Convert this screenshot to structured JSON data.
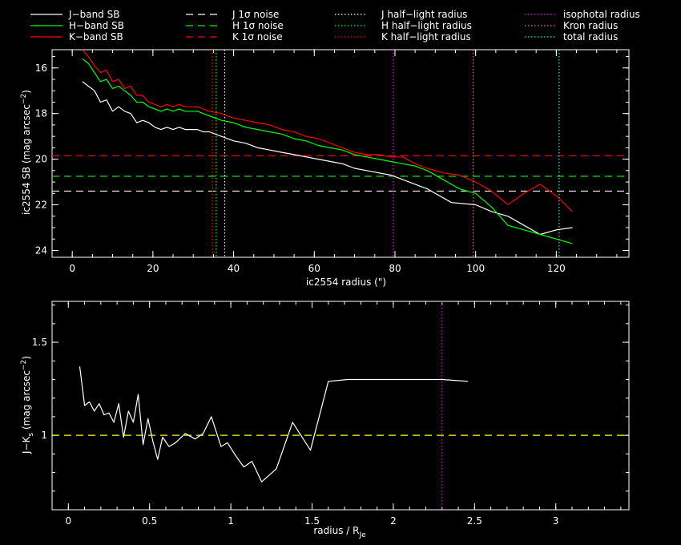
{
  "legend": [
    {
      "label": "J−band SB",
      "color": "#ffffff",
      "style": "solid"
    },
    {
      "label": "H−band SB",
      "color": "#00ff00",
      "style": "solid"
    },
    {
      "label": "K−band SB",
      "color": "#ff0000",
      "style": "solid"
    },
    {
      "label": "J 1σ noise",
      "color": "#ffffff",
      "style": "dashed"
    },
    {
      "label": "H 1σ noise",
      "color": "#00ff00",
      "style": "dashed"
    },
    {
      "label": "K 1σ noise",
      "color": "#ff0000",
      "style": "dashed"
    },
    {
      "label": "J half−light radius",
      "color": "#ffffff",
      "style": "dotted"
    },
    {
      "label": "H half−light radius",
      "color": "#00ff00",
      "style": "dotted"
    },
    {
      "label": "K half−light radius",
      "color": "#ff0000",
      "style": "dotted"
    },
    {
      "label": "isophotal radius",
      "color": "#ff00ff",
      "style": "dotted"
    },
    {
      "label": "Kron radius",
      "color": "#ff8000",
      "style": "dotted"
    },
    {
      "label": "total radius",
      "color": "#00ffff",
      "style": "dotted"
    }
  ],
  "chart_data": [
    {
      "type": "line",
      "xlabel": "ic2554 radius (\")",
      "ylabel_main": "ic2554 SB (mag arcsec",
      "ylabel_sup": "−2",
      "ylabel_end": ")",
      "xlim": [
        -5,
        138
      ],
      "ylim": [
        24.3,
        15.2
      ],
      "y_inverted": true,
      "xticks": [
        0,
        20,
        40,
        60,
        80,
        100,
        120
      ],
      "yticks": [
        16,
        18,
        20,
        22,
        24
      ],
      "series": [
        {
          "name": "J−band SB",
          "color": "#ffffff",
          "x": [
            2.5,
            4,
            5.5,
            7,
            8.5,
            10,
            11.5,
            13,
            14.5,
            16,
            17.5,
            19,
            20.5,
            22,
            23.5,
            25,
            26.5,
            28,
            29.5,
            31,
            32.5,
            34,
            37,
            40,
            43,
            46,
            49,
            52,
            55,
            58,
            61,
            64,
            67,
            70,
            73,
            76,
            79,
            82,
            85,
            88,
            94,
            100,
            104,
            108,
            112,
            116,
            120,
            124
          ],
          "y": [
            16.6,
            16.8,
            17,
            17.5,
            17.4,
            17.9,
            17.7,
            17.9,
            18,
            18.4,
            18.3,
            18.4,
            18.6,
            18.7,
            18.6,
            18.7,
            18.6,
            18.7,
            18.7,
            18.7,
            18.8,
            18.8,
            19,
            19.2,
            19.3,
            19.5,
            19.6,
            19.7,
            19.8,
            19.9,
            20,
            20.1,
            20.2,
            20.4,
            20.5,
            20.6,
            20.7,
            20.9,
            21.1,
            21.3,
            21.9,
            22,
            22.3,
            22.5,
            22.9,
            23.3,
            23.1,
            23
          ]
        },
        {
          "name": "H−band SB",
          "color": "#00ff00",
          "x": [
            2.5,
            4,
            5.5,
            7,
            8.5,
            10,
            11.5,
            13,
            14.5,
            16,
            17.5,
            19,
            20.5,
            22,
            23.5,
            25,
            26.5,
            28,
            29.5,
            31,
            32.5,
            34,
            37,
            40,
            43,
            46,
            49,
            52,
            55,
            58,
            61,
            64,
            67,
            70,
            73,
            76,
            79,
            82,
            85,
            88,
            92,
            96,
            100,
            104,
            108,
            112,
            116,
            120,
            124
          ],
          "y": [
            15.6,
            15.8,
            16.2,
            16.6,
            16.5,
            16.9,
            16.8,
            17,
            17.2,
            17.5,
            17.5,
            17.7,
            17.8,
            17.9,
            17.8,
            17.9,
            17.8,
            17.9,
            17.9,
            17.9,
            18,
            18.1,
            18.3,
            18.4,
            18.6,
            18.7,
            18.8,
            18.9,
            19.1,
            19.2,
            19.4,
            19.5,
            19.6,
            19.8,
            19.9,
            20,
            20.1,
            20.2,
            20.3,
            20.5,
            20.9,
            21.3,
            21.5,
            22.1,
            22.9,
            23.1,
            23.3,
            23.5,
            23.7
          ]
        },
        {
          "name": "K−band SB",
          "color": "#ff0000",
          "x": [
            2.5,
            4,
            5.5,
            7,
            8.5,
            10,
            11.5,
            13,
            14.5,
            16,
            17.5,
            19,
            20.5,
            22,
            23.5,
            25,
            26.5,
            28,
            29.5,
            31,
            32.5,
            34,
            37,
            40,
            43,
            46,
            49,
            52,
            55,
            58,
            61,
            64,
            67,
            70,
            73,
            76,
            79,
            82,
            85,
            88,
            92,
            96,
            100,
            104,
            108,
            112,
            116,
            120,
            124
          ],
          "y": [
            15.2,
            15.5,
            15.9,
            16.2,
            16.1,
            16.6,
            16.5,
            16.9,
            16.8,
            17.2,
            17.2,
            17.5,
            17.6,
            17.7,
            17.6,
            17.7,
            17.6,
            17.7,
            17.7,
            17.7,
            17.8,
            17.9,
            18,
            18.2,
            18.3,
            18.4,
            18.5,
            18.7,
            18.8,
            19,
            19.1,
            19.3,
            19.5,
            19.7,
            19.8,
            19.8,
            19.9,
            19.9,
            20.2,
            20.4,
            20.6,
            20.7,
            21,
            21.4,
            22,
            21.5,
            21.1,
            21.6,
            22.3
          ]
        }
      ],
      "hlines": [
        {
          "name": "J 1σ noise",
          "y": 21.4,
          "color": "#ffffff"
        },
        {
          "name": "H 1σ noise",
          "y": 20.75,
          "color": "#00ff00"
        },
        {
          "name": "K 1σ noise",
          "y": 19.85,
          "color": "#ff0000"
        }
      ],
      "vlines": [
        {
          "name": "K half−light radius",
          "x": 34.8,
          "color": "#ff0000"
        },
        {
          "name": "H half−light radius",
          "x": 35.7,
          "color": "#00ff00"
        },
        {
          "name": "J half−light radius",
          "x": 37.8,
          "color": "#ffffff"
        },
        {
          "name": "isophotal radius",
          "x": 79.6,
          "color": "#ff00ff"
        },
        {
          "name": "Kron radius",
          "x": 99.4,
          "color": "#ff8000"
        },
        {
          "name": "total radius",
          "x": 120.7,
          "color": "#00ffff"
        }
      ]
    },
    {
      "type": "line",
      "xlabel": "radius / R",
      "xlabel_sub": "Je",
      "ylabel_pre": "J−K",
      "ylabel_sub": "s",
      "ylabel_mid": " (mag arcsec",
      "ylabel_sup": "−2",
      "ylabel_end": ")",
      "xlim": [
        -0.1,
        3.45
      ],
      "ylim": [
        0.6,
        1.72
      ],
      "xticks": [
        0,
        0.5,
        1,
        1.5,
        2,
        2.5,
        3
      ],
      "xticklabels": [
        "0",
        "0.5",
        "1",
        "1.5",
        "2",
        "2.5",
        "3"
      ],
      "yticks": [
        1,
        1.5
      ],
      "yticklabels": [
        "1",
        "1.5"
      ],
      "series": [
        {
          "name": "J−K",
          "color": "#ffffff",
          "x": [
            0.07,
            0.1,
            0.13,
            0.16,
            0.19,
            0.22,
            0.25,
            0.28,
            0.31,
            0.34,
            0.37,
            0.4,
            0.43,
            0.46,
            0.49,
            0.52,
            0.55,
            0.58,
            0.62,
            0.66,
            0.72,
            0.78,
            0.83,
            0.88,
            0.94,
            0.98,
            1.03,
            1.08,
            1.13,
            1.19,
            1.28,
            1.38,
            1.49,
            1.6,
            1.72,
            1.84,
            1.98,
            2.13,
            2.3,
            2.46
          ],
          "y": [
            1.37,
            1.16,
            1.18,
            1.13,
            1.17,
            1.11,
            1.12,
            1.07,
            1.17,
            0.99,
            1.13,
            1.07,
            1.22,
            0.95,
            1.09,
            0.97,
            0.87,
            0.99,
            0.94,
            0.96,
            1.01,
            0.98,
            1.01,
            1.1,
            0.94,
            0.96,
            0.89,
            0.83,
            0.86,
            0.75,
            0.82,
            1.07,
            0.92,
            1.29,
            1.3,
            1.3,
            1.3,
            1.3,
            1.3,
            1.29
          ]
        }
      ],
      "hlines": [
        {
          "name": "zero line",
          "y": 1,
          "color": "#ffff00"
        }
      ],
      "vlines": [
        {
          "name": "isophotal radius",
          "x": 2.3,
          "color": "#ff00ff"
        }
      ]
    }
  ]
}
